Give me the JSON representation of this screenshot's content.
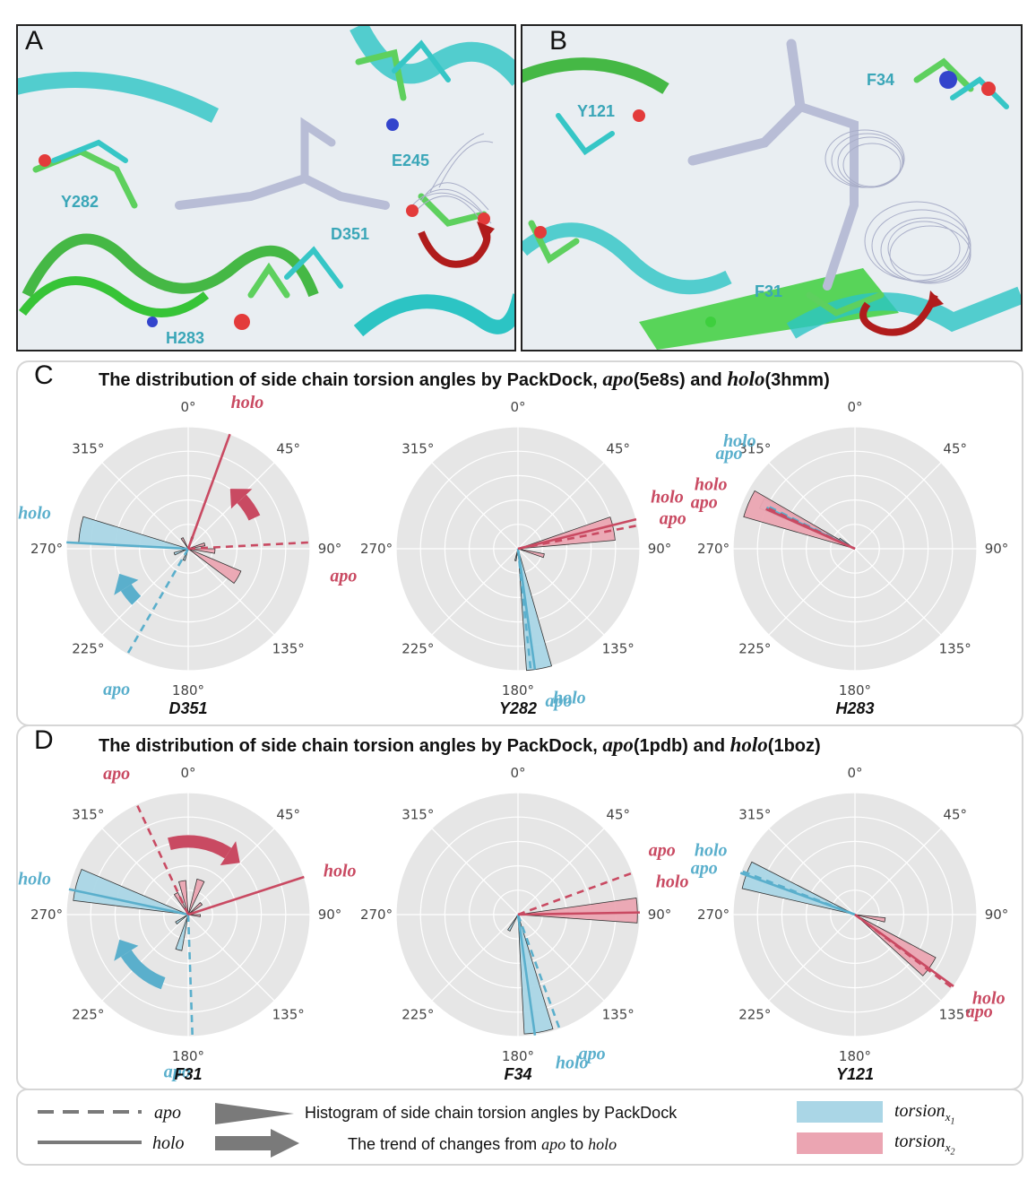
{
  "panels": {
    "A": {
      "letter": "A",
      "labels": [
        "Y282",
        "E245",
        "D351",
        "H283"
      ]
    },
    "B": {
      "letter": "B",
      "labels": [
        "Y121",
        "F34",
        "F31"
      ]
    }
  },
  "sections": {
    "C": {
      "letter": "C",
      "title_pre": "The distribution of side chain torsion angles by PackDock, ",
      "apo_word": "apo",
      "apo_pdb": "(5e8s) and ",
      "holo_word": "holo",
      "holo_pdb": "(3hmm)"
    },
    "D": {
      "letter": "D",
      "title_pre": "The distribution of side chain torsion angles by PackDock, ",
      "apo_word": "apo",
      "apo_pdb": "(1pdb) and ",
      "holo_word": "holo",
      "holo_pdb": "(1boz)"
    }
  },
  "colors": {
    "x1": "#5aafcc",
    "x1_fill": "#aad6e6",
    "x2": "#c94a62",
    "x2_fill": "#eba5b2",
    "polar_bg": "#e6e6e6",
    "grid": "#ffffff"
  },
  "legend": {
    "apo_label": "apo",
    "holo_label": "holo",
    "hist_label": "Histogram of side chain torsion angles by PackDock",
    "trend_label_pre": "The trend of changes from ",
    "trend_apo": "apo",
    "trend_to": " to ",
    "trend_holo": "holo",
    "torsion_x1": "torsion",
    "x1_sub": "x",
    "x1_subsub": "1",
    "torsion_x2": "torsion",
    "x2_sub": "x",
    "x2_subsub": "2"
  },
  "chart_data": [
    {
      "type": "polar-histogram",
      "residue": "D351",
      "theta_tick_labels": [
        "0°",
        "45°",
        "90°",
        "135°",
        "180°",
        "225°",
        "270°",
        "315°"
      ],
      "x1_hist": [
        {
          "angle": 280,
          "width": 14,
          "r": 0.9
        },
        {
          "angle": 250,
          "width": 10,
          "r": 0.12
        },
        {
          "angle": 200,
          "width": 10,
          "r": 0.1
        }
      ],
      "x2_hist": [
        {
          "angle": 120,
          "width": 14,
          "r": 0.47
        },
        {
          "angle": 95,
          "width": 10,
          "r": 0.22
        },
        {
          "angle": 75,
          "width": 10,
          "r": 0.14
        },
        {
          "angle": 20,
          "width": 10,
          "r": 0.1
        },
        {
          "angle": 330,
          "width": 10,
          "r": 0.1
        }
      ],
      "lines": [
        {
          "torsion": "x1",
          "state": "holo",
          "angle": 273,
          "r": 1.0
        },
        {
          "torsion": "x1",
          "state": "apo",
          "angle": 210,
          "r": 1.0
        },
        {
          "torsion": "x2",
          "state": "holo",
          "angle": 20,
          "r": 1.0
        },
        {
          "torsion": "x2",
          "state": "apo",
          "angle": 87,
          "r": 1.0
        }
      ],
      "labels": [
        {
          "text": "holo",
          "torsion": "x2",
          "angle": 22
        },
        {
          "text": "apo",
          "torsion": "x2",
          "angle": 100
        },
        {
          "text": "holo",
          "torsion": "x1",
          "angle": 283
        },
        {
          "text": "apo",
          "torsion": "x1",
          "angle": 207
        }
      ],
      "trend_arrows": [
        {
          "torsion": "x2",
          "from": 65,
          "to": 35
        },
        {
          "torsion": "x1",
          "from": 225,
          "to": 250
        }
      ]
    },
    {
      "type": "polar-histogram",
      "residue": "Y282",
      "theta_tick_labels": [
        "0°",
        "45°",
        "90°",
        "135°",
        "180°",
        "225°",
        "270°",
        "315°"
      ],
      "x1_hist": [
        {
          "angle": 170,
          "width": 12,
          "r": 1.0
        },
        {
          "angle": 192,
          "width": 6,
          "r": 0.1
        }
      ],
      "x2_hist": [
        {
          "angle": 78,
          "width": 14,
          "r": 0.8
        },
        {
          "angle": 105,
          "width": 8,
          "r": 0.22
        }
      ],
      "lines": [
        {
          "torsion": "x1",
          "state": "holo",
          "angle": 172,
          "r": 1.0
        },
        {
          "torsion": "x1",
          "state": "apo",
          "angle": 174,
          "r": 1.0
        },
        {
          "torsion": "x2",
          "state": "holo",
          "angle": 76,
          "r": 1.0
        },
        {
          "torsion": "x2",
          "state": "apo",
          "angle": 79,
          "r": 1.0
        }
      ],
      "labels": [
        {
          "text": "holo",
          "torsion": "x2",
          "angle": 71
        },
        {
          "text": "apo",
          "torsion": "x2",
          "angle": 79
        },
        {
          "text": "holo",
          "torsion": "x1",
          "angle": 161
        },
        {
          "text": "apo",
          "torsion": "x1",
          "angle": 165
        }
      ],
      "trend_arrows": []
    },
    {
      "type": "polar-histogram",
      "residue": "H283",
      "theta_tick_labels": [
        "0°",
        "45°",
        "90°",
        "135°",
        "180°",
        "225°",
        "270°",
        "315°"
      ],
      "x1_hist": [
        {
          "angle": 296,
          "width": 6,
          "r": 0.85
        },
        {
          "angle": 300,
          "width": 10,
          "r": 0.15
        }
      ],
      "x2_hist": [
        {
          "angle": 293,
          "width": 14,
          "r": 0.95
        }
      ],
      "lines": [
        {
          "torsion": "x1",
          "state": "holo",
          "angle": 295,
          "r": 0.8
        },
        {
          "torsion": "x1",
          "state": "apo",
          "angle": 296,
          "r": 0.8
        },
        {
          "torsion": "x2",
          "state": "holo",
          "angle": 294,
          "r": 0.8
        },
        {
          "torsion": "x2",
          "state": "apo",
          "angle": 295,
          "r": 0.8
        }
      ],
      "labels": [
        {
          "text": "holo",
          "torsion": "x1",
          "angle": 313
        },
        {
          "text": "apo",
          "torsion": "x1",
          "angle": 307
        },
        {
          "text": "holo",
          "torsion": "x2",
          "angle": 294
        },
        {
          "text": "apo",
          "torsion": "x2",
          "angle": 287
        }
      ],
      "trend_arrows": []
    },
    {
      "type": "polar-histogram",
      "residue": "F31",
      "theta_tick_labels": [
        "0°",
        "45°",
        "90°",
        "135°",
        "180°",
        "225°",
        "270°",
        "315°"
      ],
      "x1_hist": [
        {
          "angle": 285,
          "width": 16,
          "r": 0.95
        },
        {
          "angle": 195,
          "width": 10,
          "r": 0.3
        },
        {
          "angle": 235,
          "width": 10,
          "r": 0.12
        }
      ],
      "x2_hist": [
        {
          "angle": 20,
          "width": 12,
          "r": 0.3
        },
        {
          "angle": 350,
          "width": 12,
          "r": 0.28
        },
        {
          "angle": 330,
          "width": 10,
          "r": 0.2
        },
        {
          "angle": 50,
          "width": 10,
          "r": 0.14
        },
        {
          "angle": 95,
          "width": 10,
          "r": 0.1
        }
      ],
      "lines": [
        {
          "torsion": "x1",
          "state": "holo",
          "angle": 282,
          "r": 1.0
        },
        {
          "torsion": "x1",
          "state": "apo",
          "angle": 178,
          "r": 1.0
        },
        {
          "torsion": "x2",
          "state": "holo",
          "angle": 72,
          "r": 1.0
        },
        {
          "torsion": "x2",
          "state": "apo",
          "angle": 335,
          "r": 1.0
        }
      ],
      "labels": [
        {
          "text": "apo",
          "torsion": "x2",
          "angle": 333
        },
        {
          "text": "holo",
          "torsion": "x2",
          "angle": 74
        },
        {
          "text": "holo",
          "torsion": "x1",
          "angle": 283
        },
        {
          "text": "apo",
          "torsion": "x1",
          "angle": 184
        }
      ],
      "trend_arrows": [
        {
          "torsion": "x2",
          "from": 345,
          "to": 45
        },
        {
          "torsion": "x1",
          "from": 200,
          "to": 250
        }
      ]
    },
    {
      "type": "polar-histogram",
      "residue": "F34",
      "theta_tick_labels": [
        "0°",
        "45°",
        "90°",
        "135°",
        "180°",
        "225°",
        "270°",
        "315°"
      ],
      "x1_hist": [
        {
          "angle": 170,
          "width": 14,
          "r": 0.98
        },
        {
          "angle": 210,
          "width": 8,
          "r": 0.15
        }
      ],
      "x2_hist": [
        {
          "angle": 88,
          "width": 12,
          "r": 0.98
        }
      ],
      "lines": [
        {
          "torsion": "x1",
          "state": "holo",
          "angle": 172,
          "r": 1.0
        },
        {
          "torsion": "x1",
          "state": "apo",
          "angle": 160,
          "r": 1.0
        },
        {
          "torsion": "x2",
          "state": "holo",
          "angle": 89,
          "r": 1.0
        },
        {
          "torsion": "x2",
          "state": "apo",
          "angle": 70,
          "r": 1.0
        }
      ],
      "labels": [
        {
          "text": "apo",
          "torsion": "x2",
          "angle": 66
        },
        {
          "text": "holo",
          "torsion": "x2",
          "angle": 78
        },
        {
          "text": "apo",
          "torsion": "x1",
          "angle": 152
        },
        {
          "text": "holo",
          "torsion": "x1",
          "angle": 160
        }
      ],
      "trend_arrows": []
    },
    {
      "type": "polar-histogram",
      "residue": "Y121",
      "theta_tick_labels": [
        "0°",
        "45°",
        "90°",
        "135°",
        "180°",
        "225°",
        "270°",
        "315°"
      ],
      "x1_hist": [
        {
          "angle": 290,
          "width": 14,
          "r": 0.95
        }
      ],
      "x2_hist": [
        {
          "angle": 125,
          "width": 14,
          "r": 0.75
        },
        {
          "angle": 100,
          "width": 8,
          "r": 0.25
        }
      ],
      "lines": [
        {
          "torsion": "x1",
          "state": "holo",
          "angle": 290,
          "r": 1.0
        },
        {
          "torsion": "x1",
          "state": "apo",
          "angle": 291,
          "r": 1.0
        },
        {
          "torsion": "x2",
          "state": "holo",
          "angle": 126,
          "r": 1.0
        },
        {
          "torsion": "x2",
          "state": "apo",
          "angle": 127,
          "r": 1.0
        }
      ],
      "labels": [
        {
          "text": "holo",
          "torsion": "x1",
          "angle": 294
        },
        {
          "text": "apo",
          "torsion": "x1",
          "angle": 287
        },
        {
          "text": "holo",
          "torsion": "x2",
          "angle": 122
        },
        {
          "text": "apo",
          "torsion": "x2",
          "angle": 128
        }
      ],
      "trend_arrows": []
    }
  ]
}
